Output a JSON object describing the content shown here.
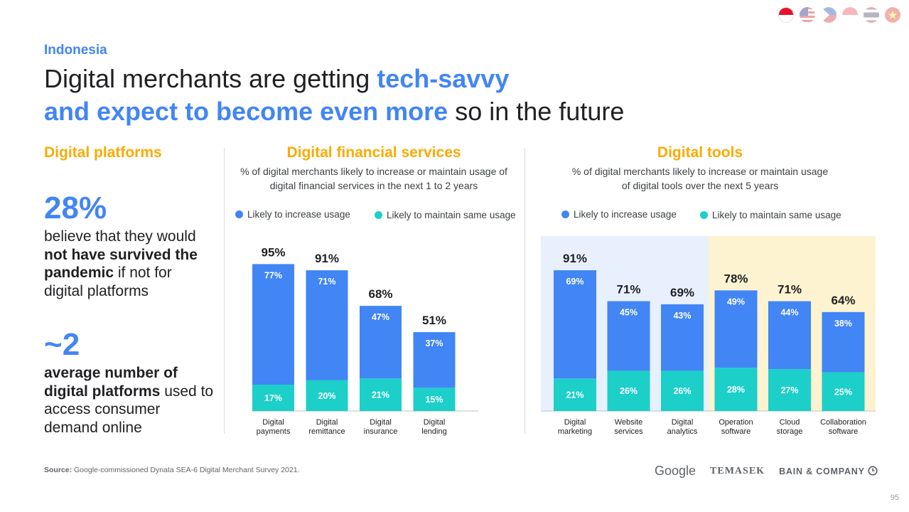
{
  "header": {
    "region": "Indonesia",
    "title_line1_plain": "Digital merchants are getting ",
    "title_line1_bold": "tech-savvy",
    "title_line2_bold": "and expect to become even more",
    "title_line2_plain": " so in the future",
    "flags": [
      "indonesia",
      "malaysia",
      "philippines",
      "singapore",
      "thailand",
      "vietnam"
    ]
  },
  "platforms": {
    "heading": "Digital platforms",
    "stat1": "28%",
    "stat1_pre": "believe that they would ",
    "stat1_bold": "not have survived the pandemic",
    "stat1_post": " if not for digital platforms",
    "stat2": "~2",
    "stat2_bold": "average number of digital platforms",
    "stat2_post": " used to access consumer demand online"
  },
  "legend": {
    "increase": "Likely to increase usage",
    "maintain": "Likely to maintain same usage"
  },
  "colors": {
    "increase": "#4285f4",
    "maintain": "#1ccfc9",
    "accent": "#f9ab00",
    "panel_blue": "#e8f0fe",
    "panel_yellow": "#fef3d0"
  },
  "chart_data": [
    {
      "type": "bar",
      "stacked": true,
      "title": "Digital financial services",
      "subtitle": "% of digital merchants likely to increase or maintain usage of digital financial services in the next 1 to 2 years",
      "categories": [
        "Digital payments",
        "Digital remittance",
        "Digital insurance",
        "Digital lending"
      ],
      "series": [
        {
          "name": "Likely to maintain same usage",
          "values": [
            17,
            20,
            21,
            15
          ]
        },
        {
          "name": "Likely to increase usage",
          "values": [
            77,
            71,
            47,
            37
          ]
        }
      ],
      "totals": [
        "95%",
        "91%",
        "68%",
        "51%"
      ],
      "ylim": [
        0,
        100
      ]
    },
    {
      "type": "bar",
      "stacked": true,
      "title": "Digital tools",
      "subtitle": "% of digital merchants likely to increase or maintain usage of digital tools over the next 5 years",
      "categories": [
        "Digital marketing",
        "Website services",
        "Digital analytics",
        "Operation software",
        "Cloud storage",
        "Collaboration software"
      ],
      "series": [
        {
          "name": "Likely to maintain same usage",
          "values": [
            21,
            26,
            26,
            28,
            27,
            25
          ]
        },
        {
          "name": "Likely to increase usage",
          "values": [
            69,
            45,
            43,
            49,
            44,
            38
          ]
        }
      ],
      "totals": [
        "91%",
        "71%",
        "69%",
        "78%",
        "71%",
        "64%"
      ],
      "ylim": [
        0,
        100
      ]
    }
  ],
  "footer": {
    "source_label": "Source:",
    "source_text": " Google-commissioned Dynata SEA-6 Digital Merchant Survey 2021.",
    "logo_google": "Google",
    "logo_temasek": "TEMASEK",
    "logo_bain": "BAIN & COMPANY",
    "page_number": "95"
  }
}
